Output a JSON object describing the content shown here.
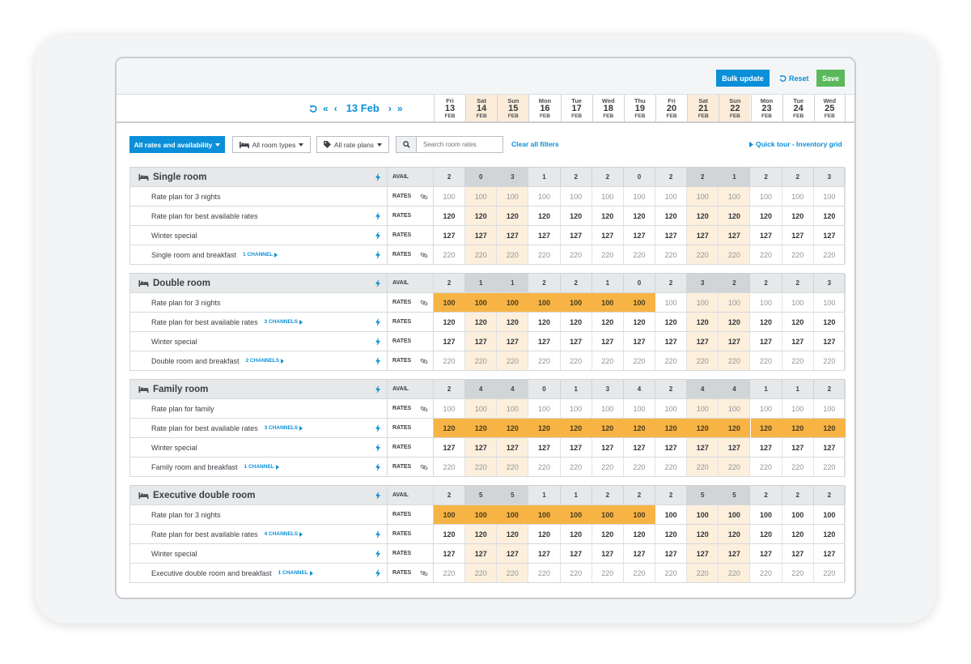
{
  "toolbar": {
    "bulk_label": "Bulk update",
    "reset_label": "Reset",
    "save_label": "Save"
  },
  "nav": {
    "current": "13 Feb"
  },
  "dates": [
    {
      "day": "Fri",
      "num": "13",
      "mon": "FEB",
      "weekend": false
    },
    {
      "day": "Sat",
      "num": "14",
      "mon": "FEB",
      "weekend": true
    },
    {
      "day": "Sun",
      "num": "15",
      "mon": "FEB",
      "weekend": true
    },
    {
      "day": "Mon",
      "num": "16",
      "mon": "FEB",
      "weekend": false
    },
    {
      "day": "Tue",
      "num": "17",
      "mon": "FEB",
      "weekend": false
    },
    {
      "day": "Wed",
      "num": "18",
      "mon": "FEB",
      "weekend": false
    },
    {
      "day": "Thu",
      "num": "19",
      "mon": "FEB",
      "weekend": false
    },
    {
      "day": "Fri",
      "num": "20",
      "mon": "FEB",
      "weekend": false
    },
    {
      "day": "Sat",
      "num": "21",
      "mon": "FEB",
      "weekend": true
    },
    {
      "day": "Sun",
      "num": "22",
      "mon": "FEB",
      "weekend": true
    },
    {
      "day": "Mon",
      "num": "23",
      "mon": "FEB",
      "weekend": false
    },
    {
      "day": "Tue",
      "num": "24",
      "mon": "FEB",
      "weekend": false
    },
    {
      "day": "Wed",
      "num": "25",
      "mon": "FEB",
      "weekend": false
    }
  ],
  "filters": {
    "primary": "All rates and availability",
    "room_types": "All room types",
    "rate_plans": "All rate plans",
    "search_placeholder": "Search room rates",
    "clear": "Clear all filters",
    "tour": "Quick tour - Inventory grid"
  },
  "labels": {
    "avail": "AVAIL",
    "rates": "RATES"
  },
  "colors": {
    "accent": "#0a8fd8",
    "save": "#5cb85c",
    "highlight": "#f7b445",
    "weekend": "#fcefdc"
  },
  "rooms": [
    {
      "name": "Single room",
      "avail": [
        "2",
        "0",
        "3",
        "1",
        "2",
        "2",
        "0",
        "2",
        "2",
        "1",
        "2",
        "2",
        "3"
      ],
      "plans": [
        {
          "name": "Rate plan for 3 nights",
          "channels": "",
          "icon": "link",
          "dim": true,
          "values": [
            "100",
            "100",
            "100",
            "100",
            "100",
            "100",
            "100",
            "100",
            "100",
            "100",
            "100",
            "100",
            "100"
          ],
          "hl": 0
        },
        {
          "name": "Rate plan for best available rates",
          "channels": "",
          "icon": "bolt",
          "dim": false,
          "values": [
            "120",
            "120",
            "120",
            "120",
            "120",
            "120",
            "120",
            "120",
            "120",
            "120",
            "120",
            "120",
            "120"
          ],
          "hl": 0
        },
        {
          "name": "Winter special",
          "channels": "",
          "icon": "bolt",
          "dim": false,
          "values": [
            "127",
            "127",
            "127",
            "127",
            "127",
            "127",
            "127",
            "127",
            "127",
            "127",
            "127",
            "127",
            "127"
          ],
          "hl": 0
        },
        {
          "name": "Single room and breakfast",
          "channels": "1 CHANNEL",
          "icon": "both",
          "dim": true,
          "values": [
            "220",
            "220",
            "220",
            "220",
            "220",
            "220",
            "220",
            "220",
            "220",
            "220",
            "220",
            "220",
            "220"
          ],
          "hl": 0
        }
      ]
    },
    {
      "name": "Double room",
      "avail": [
        "2",
        "1",
        "1",
        "2",
        "2",
        "1",
        "0",
        "2",
        "3",
        "2",
        "2",
        "2",
        "3"
      ],
      "plans": [
        {
          "name": "Rate plan for 3 nights",
          "channels": "",
          "icon": "link",
          "dim": true,
          "values": [
            "100",
            "100",
            "100",
            "100",
            "100",
            "100",
            "100",
            "100",
            "100",
            "100",
            "100",
            "100",
            "100"
          ],
          "hl": 7
        },
        {
          "name": "Rate plan for best available rates",
          "channels": "3 CHANNELS",
          "icon": "bolt",
          "dim": false,
          "values": [
            "120",
            "120",
            "120",
            "120",
            "120",
            "120",
            "120",
            "120",
            "120",
            "120",
            "120",
            "120",
            "120"
          ],
          "hl": 0
        },
        {
          "name": "Winter special",
          "channels": "",
          "icon": "bolt",
          "dim": false,
          "values": [
            "127",
            "127",
            "127",
            "127",
            "127",
            "127",
            "127",
            "127",
            "127",
            "127",
            "127",
            "127",
            "127"
          ],
          "hl": 0
        },
        {
          "name": "Double room and breakfast",
          "channels": "2 CHANNELS",
          "icon": "both",
          "dim": true,
          "values": [
            "220",
            "220",
            "220",
            "220",
            "220",
            "220",
            "220",
            "220",
            "220",
            "220",
            "220",
            "220",
            "220"
          ],
          "hl": 0
        }
      ]
    },
    {
      "name": "Family room",
      "avail": [
        "2",
        "4",
        "4",
        "0",
        "1",
        "3",
        "4",
        "2",
        "4",
        "4",
        "1",
        "1",
        "2"
      ],
      "plans": [
        {
          "name": "Rate plan for family",
          "channels": "",
          "icon": "link",
          "dim": true,
          "values": [
            "100",
            "100",
            "100",
            "100",
            "100",
            "100",
            "100",
            "100",
            "100",
            "100",
            "100",
            "100",
            "100"
          ],
          "hl": 0
        },
        {
          "name": "Rate plan for best available rates",
          "channels": "3 CHANNELS",
          "icon": "bolt",
          "dim": false,
          "values": [
            "120",
            "120",
            "120",
            "120",
            "120",
            "120",
            "120",
            "120",
            "120",
            "120",
            "120",
            "120",
            "120"
          ],
          "hl": 13
        },
        {
          "name": "Winter special",
          "channels": "",
          "icon": "bolt",
          "dim": false,
          "values": [
            "127",
            "127",
            "127",
            "127",
            "127",
            "127",
            "127",
            "127",
            "127",
            "127",
            "127",
            "127",
            "127"
          ],
          "hl": 0
        },
        {
          "name": "Family room and breakfast",
          "channels": "1 CHANNEL",
          "icon": "both",
          "dim": true,
          "values": [
            "220",
            "220",
            "220",
            "220",
            "220",
            "220",
            "220",
            "220",
            "220",
            "220",
            "220",
            "220",
            "220"
          ],
          "hl": 0
        }
      ]
    },
    {
      "name": "Executive double room",
      "avail": [
        "2",
        "5",
        "5",
        "1",
        "1",
        "2",
        "2",
        "2",
        "5",
        "5",
        "2",
        "2",
        "2"
      ],
      "plans": [
        {
          "name": "Rate plan for 3 nights",
          "channels": "",
          "icon": "none",
          "dim": false,
          "values": [
            "100",
            "100",
            "100",
            "100",
            "100",
            "100",
            "100",
            "100",
            "100",
            "100",
            "100",
            "100",
            "100"
          ],
          "hl": 7
        },
        {
          "name": "Rate plan for best available rates",
          "channels": "4 CHANNELS",
          "icon": "bolt",
          "dim": false,
          "values": [
            "120",
            "120",
            "120",
            "120",
            "120",
            "120",
            "120",
            "120",
            "120",
            "120",
            "120",
            "120",
            "120"
          ],
          "hl": 0
        },
        {
          "name": "Winter special",
          "channels": "",
          "icon": "bolt",
          "dim": false,
          "values": [
            "127",
            "127",
            "127",
            "127",
            "127",
            "127",
            "127",
            "127",
            "127",
            "127",
            "127",
            "127",
            "127"
          ],
          "hl": 0
        },
        {
          "name": "Executive double room and breakfast",
          "channels": "1 CHANNEL",
          "icon": "both",
          "dim": true,
          "values": [
            "220",
            "220",
            "220",
            "220",
            "220",
            "220",
            "220",
            "220",
            "220",
            "220",
            "220",
            "220",
            "220"
          ],
          "hl": 0
        }
      ]
    }
  ]
}
